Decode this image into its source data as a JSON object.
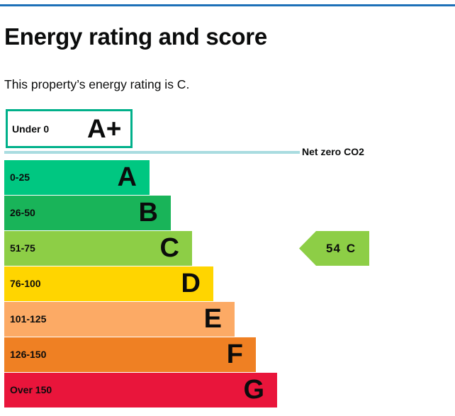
{
  "page": {
    "heading": "Energy rating and score",
    "intro": "This property’s energy rating is C."
  },
  "colors": {
    "top_rule": "#1d70b8",
    "net_zero_line": "#a9dce0",
    "aplus_border": "#00b08a"
  },
  "aplus": {
    "range": "Under 0",
    "letter": "A+"
  },
  "net_zero": {
    "label": "Net zero CO2"
  },
  "bands": [
    {
      "range": "0-25",
      "letter": "A",
      "color": "#00c781"
    },
    {
      "range": "26-50",
      "letter": "B",
      "color": "#19b459"
    },
    {
      "range": "51-75",
      "letter": "C",
      "color": "#8dce46"
    },
    {
      "range": "76-100",
      "letter": "D",
      "color": "#ffd500"
    },
    {
      "range": "101-125",
      "letter": "E",
      "color": "#fcaa65"
    },
    {
      "range": "126-150",
      "letter": "F",
      "color": "#ef8023"
    },
    {
      "range": "Over 150",
      "letter": "G",
      "color": "#e9153b"
    }
  ],
  "current_rating": {
    "score": "54",
    "letter": "C",
    "color": "#8dce46"
  }
}
